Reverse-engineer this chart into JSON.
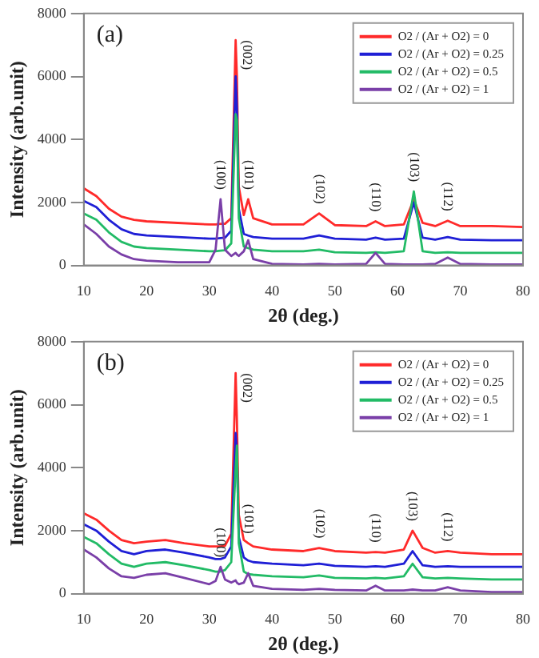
{
  "chart_data": [
    {
      "type": "line",
      "xlabel": "2θ (deg.)",
      "ylabel": "Intensity (arb.unit)",
      "xlim": [
        10,
        80
      ],
      "xticks": [
        10,
        20,
        30,
        40,
        50,
        60,
        70,
        80
      ],
      "ylim": [
        0,
        8000
      ],
      "yticks": [
        0,
        2000,
        4000,
        6000,
        8000
      ],
      "grid": false,
      "legend": "top right",
      "marker": "none",
      "x": [
        10,
        12,
        14,
        16,
        18,
        20,
        25,
        30,
        31,
        31.8,
        32.5,
        33.5,
        34.2,
        34.4,
        34.7,
        35.5,
        36.2,
        37,
        40,
        45,
        47.5,
        50,
        55,
        56.5,
        58,
        61,
        62.6,
        64,
        66,
        68,
        70,
        75,
        80
      ],
      "series": [
        {
          "name": "O2 / (Ar + O2) = 0",
          "color": "#ff2a2a",
          "values": [
            2450,
            2200,
            1800,
            1550,
            1450,
            1400,
            1350,
            1300,
            1300,
            1320,
            1320,
            1500,
            7150,
            6000,
            2500,
            1600,
            2100,
            1500,
            1300,
            1300,
            1650,
            1280,
            1250,
            1400,
            1250,
            1300,
            2100,
            1350,
            1250,
            1420,
            1250,
            1250,
            1220
          ]
        },
        {
          "name": "O2 / (Ar + O2) = 0.25",
          "color": "#1f1fd6",
          "values": [
            2050,
            1850,
            1450,
            1150,
            1000,
            950,
            900,
            850,
            850,
            870,
            880,
            1100,
            6000,
            5000,
            1800,
            1000,
            950,
            900,
            850,
            850,
            950,
            850,
            820,
            880,
            820,
            850,
            2000,
            880,
            820,
            900,
            820,
            800,
            800
          ]
        },
        {
          "name": "O2 / (Ar + O2) = 0.5",
          "color": "#22bb66",
          "values": [
            1650,
            1450,
            1050,
            750,
            600,
            550,
            500,
            450,
            450,
            470,
            480,
            700,
            4800,
            4600,
            1500,
            600,
            550,
            500,
            450,
            450,
            500,
            420,
            400,
            420,
            400,
            450,
            2350,
            450,
            400,
            420,
            400,
            400,
            400
          ]
        },
        {
          "name": "O2 / (Ar + O2) = 1",
          "color": "#7a3fa8",
          "values": [
            1300,
            1000,
            600,
            350,
            200,
            150,
            100,
            100,
            500,
            2100,
            500,
            300,
            400,
            350,
            300,
            450,
            800,
            200,
            50,
            30,
            50,
            30,
            50,
            400,
            50,
            30,
            30,
            30,
            50,
            250,
            50,
            30,
            30
          ]
        }
      ],
      "annotations": [
        "(a)",
        {
          "text": "(100)",
          "x": 31.8,
          "y": 2100
        },
        {
          "text": "(002)",
          "x": 34.2,
          "y": 7150
        },
        {
          "text": "(101)",
          "x": 36.2,
          "y": 2100
        },
        {
          "text": "(102)",
          "x": 47.5,
          "y": 1650
        },
        {
          "text": "(110)",
          "x": 56.5,
          "y": 1400
        },
        {
          "text": "(103)",
          "x": 62.6,
          "y": 2350
        },
        {
          "text": "(112)",
          "x": 68,
          "y": 1420
        }
      ]
    },
    {
      "type": "line",
      "xlabel": "2θ (deg.)",
      "ylabel": "Intensity (arb.unit)",
      "xlim": [
        10,
        80
      ],
      "xticks": [
        10,
        20,
        30,
        40,
        50,
        60,
        70,
        80
      ],
      "ylim": [
        0,
        8000
      ],
      "yticks": [
        0,
        2000,
        4000,
        6000,
        8000
      ],
      "grid": false,
      "legend": "top right",
      "marker": "none",
      "x": [
        10,
        12,
        14,
        16,
        18,
        20,
        23,
        26,
        30,
        31,
        31.8,
        32.5,
        33.5,
        34.2,
        34.4,
        34.7,
        35.5,
        36.2,
        37,
        40,
        45,
        47.5,
        50,
        55,
        56.5,
        58,
        61,
        62.4,
        64,
        66,
        68,
        70,
        75,
        80
      ],
      "series": [
        {
          "name": "O2 / (Ar + O2) = 0",
          "color": "#ff2a2a",
          "values": [
            2550,
            2350,
            2000,
            1700,
            1600,
            1650,
            1700,
            1600,
            1500,
            1500,
            1500,
            1520,
            1900,
            7000,
            5500,
            2500,
            1700,
            1600,
            1500,
            1400,
            1350,
            1450,
            1350,
            1300,
            1320,
            1300,
            1400,
            2000,
            1450,
            1300,
            1350,
            1300,
            1250,
            1250
          ]
        },
        {
          "name": "O2 / (Ar + O2) = 0.25",
          "color": "#1f1fd6",
          "values": [
            2200,
            2000,
            1650,
            1350,
            1250,
            1350,
            1400,
            1300,
            1150,
            1100,
            1100,
            1150,
            1500,
            5100,
            4500,
            1800,
            1150,
            1050,
            1000,
            950,
            900,
            950,
            880,
            850,
            870,
            850,
            950,
            1350,
            900,
            850,
            870,
            850,
            850,
            850
          ]
        },
        {
          "name": "O2 / (Ar + O2) = 0.5",
          "color": "#22bb66",
          "values": [
            1800,
            1600,
            1250,
            950,
            850,
            950,
            1000,
            900,
            750,
            700,
            700,
            750,
            1000,
            4000,
            4700,
            1600,
            700,
            620,
            600,
            550,
            520,
            580,
            500,
            480,
            500,
            480,
            550,
            950,
            520,
            480,
            500,
            480,
            450,
            450
          ]
        },
        {
          "name": "O2 / (Ar + O2) = 1",
          "color": "#7a3fa8",
          "values": [
            1400,
            1150,
            800,
            550,
            500,
            600,
            650,
            500,
            300,
            400,
            850,
            450,
            350,
            420,
            350,
            300,
            350,
            650,
            250,
            150,
            120,
            150,
            120,
            100,
            250,
            100,
            100,
            130,
            100,
            100,
            200,
            100,
            50,
            50
          ]
        }
      ],
      "annotations": [
        "(b)",
        {
          "text": "(100)",
          "x": 31.8,
          "y": 850
        },
        {
          "text": "(002)",
          "x": 34.2,
          "y": 7000
        },
        {
          "text": "(101)",
          "x": 36.2,
          "y": 1600
        },
        {
          "text": "(102)",
          "x": 47.5,
          "y": 1450
        },
        {
          "text": "(110)",
          "x": 56.5,
          "y": 1320
        },
        {
          "text": "(103)",
          "x": 62.4,
          "y": 2000
        },
        {
          "text": "(112)",
          "x": 68,
          "y": 1350
        }
      ]
    }
  ]
}
